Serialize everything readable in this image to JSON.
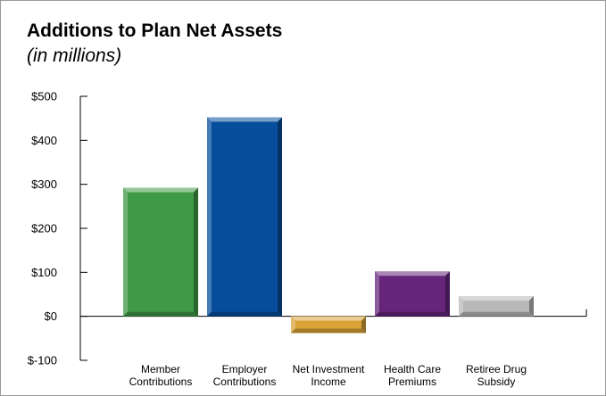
{
  "chart_data": {
    "type": "bar",
    "title": "Additions to Plan Net Assets",
    "subtitle": "(in millions)",
    "categories": [
      [
        "Member",
        "Contributions"
      ],
      [
        "Employer",
        "Contributions"
      ],
      [
        "Net Investment",
        "Income"
      ],
      [
        "Health Care",
        "Premiums"
      ],
      [
        "Retiree Drug",
        "Subsidy"
      ]
    ],
    "values": [
      292,
      452,
      -38,
      102,
      46
    ],
    "colors": [
      "#3f9a45",
      "#064d9c",
      "#d9a338",
      "#64257a",
      "#b8b8b8"
    ],
    "yticks": [
      {
        "value": 500,
        "label": "$500"
      },
      {
        "value": 400,
        "label": "$400"
      },
      {
        "value": 300,
        "label": "$300"
      },
      {
        "value": 200,
        "label": "$200"
      },
      {
        "value": 100,
        "label": "$100"
      },
      {
        "value": 0,
        "label": "$0"
      },
      {
        "value": -100,
        "label": "$-100"
      }
    ],
    "ylim": [
      -100,
      500
    ],
    "xlabel": "",
    "ylabel": "",
    "grid": false,
    "legend": false
  }
}
